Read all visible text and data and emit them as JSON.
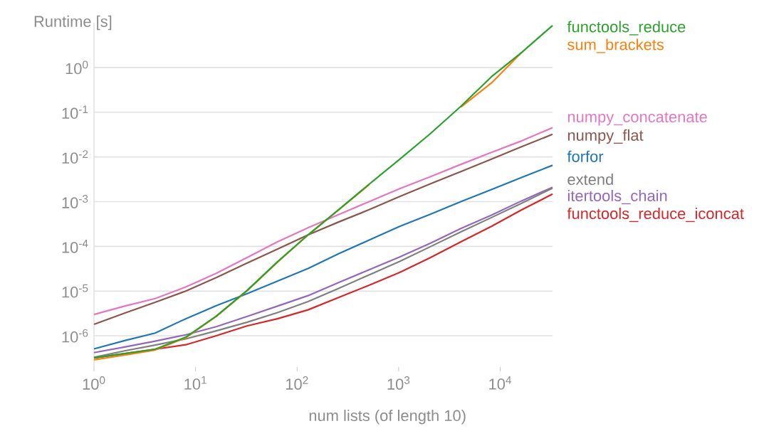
{
  "chart_data": {
    "type": "line",
    "xlabel": "num lists (of length 10)",
    "ylabel": "Runtime [s]",
    "log": "xy",
    "grid": "y",
    "marker": "none",
    "x": [
      1,
      2,
      4,
      8,
      16,
      32,
      64,
      128,
      256,
      512,
      1024,
      2048,
      4096,
      8192,
      16384,
      32768
    ],
    "xlim": [
      1,
      32768
    ],
    "ylim": [
      2e-07,
      10
    ],
    "xticks": [
      {
        "value": 1,
        "label": "10$^{0}$"
      },
      {
        "value": 10,
        "label": "10$^{1}$"
      },
      {
        "value": 100,
        "label": "10$^{2}$"
      },
      {
        "value": 1000,
        "label": "10$^{3}$"
      },
      {
        "value": 10000,
        "label": "10$^{4}$"
      }
    ],
    "yticks": [
      {
        "value": 1e-06,
        "label": "10$^{-6}$"
      },
      {
        "value": 1e-05,
        "label": "10$^{-5}$"
      },
      {
        "value": 0.0001,
        "label": "10$^{-4}$"
      },
      {
        "value": 0.001,
        "label": "10$^{-3}$"
      },
      {
        "value": 0.01,
        "label": "10$^{-2}$"
      },
      {
        "value": 0.1,
        "label": "10$^{-1}$"
      },
      {
        "value": 1,
        "label": "10$^{0}$"
      }
    ],
    "series": [
      {
        "name": "functools_reduce",
        "color": "#2ca02c",
        "values": [
          3.2e-07,
          4e-07,
          5e-07,
          9.3e-07,
          2.75e-06,
          1.02e-05,
          4.5e-05,
          0.00018,
          0.00066,
          0.00245,
          0.0089,
          0.033,
          0.135,
          0.62,
          2.2,
          8.7
        ]
      },
      {
        "name": "sum_brackets",
        "color": "#ff7f0e",
        "values": [
          2.9e-07,
          3.7e-07,
          4.8e-07,
          9e-07,
          2.7e-06,
          1e-05,
          4.4e-05,
          0.00018,
          0.00065,
          0.0024,
          null,
          null,
          0.13,
          0.45,
          2.2,
          null
        ]
      },
      {
        "name": "numpy_concatenate",
        "color": "#e377c2",
        "values": [
          3e-06,
          4.6e-06,
          6.8e-06,
          1.23e-05,
          2.5e-05,
          5.6e-05,
          0.000126,
          0.00026,
          0.00051,
          0.001,
          0.00195,
          0.0036,
          0.0068,
          0.0126,
          0.023,
          0.045
        ]
      },
      {
        "name": "numpy_flat",
        "color": "#8c564b",
        "values": [
          1.8e-06,
          3.2e-06,
          5.6e-06,
          1e-05,
          2e-05,
          4.2e-05,
          8.7e-05,
          0.00018,
          0.00035,
          0.00066,
          0.0013,
          0.0025,
          0.0047,
          0.0089,
          0.017,
          0.032
        ]
      },
      {
        "name": "forfor",
        "color": "#1f77b4",
        "values": [
          5.1e-07,
          7.8e-07,
          1.15e-06,
          2.4e-06,
          4.7e-06,
          8.7e-06,
          1.66e-05,
          3.2e-05,
          6.8e-05,
          0.000138,
          0.00028,
          0.00052,
          0.001,
          0.00186,
          0.0035,
          0.0065
        ]
      },
      {
        "name": "extend",
        "color": "#7f7f7f",
        "values": [
          3.3e-07,
          4.6e-07,
          6.2e-07,
          8.5e-07,
          1.29e-06,
          2e-06,
          3.3e-06,
          5.8e-06,
          1.15e-05,
          2.3e-05,
          4.6e-05,
          9.8e-05,
          0.00021,
          0.00044,
          0.00093,
          0.002
        ]
      },
      {
        "name": "itertools_chain",
        "color": "#9467bd",
        "values": [
          4.2e-07,
          5.6e-07,
          7.6e-07,
          1.05e-06,
          1.6e-06,
          2.7e-06,
          4.6e-06,
          7.9e-06,
          1.55e-05,
          3e-05,
          5.8e-05,
          0.000117,
          0.00025,
          0.0005,
          0.00105,
          0.0021
        ]
      },
      {
        "name": "functools_reduce_iconcat",
        "color": "#d62728",
        "values": [
          3.2e-07,
          4e-07,
          5e-07,
          6.3e-07,
          1e-06,
          1.66e-06,
          2.4e-06,
          3.8e-06,
          7.2e-06,
          1.35e-05,
          2.6e-05,
          5.6e-05,
          0.000126,
          0.00028,
          0.00066,
          0.00148
        ]
      }
    ]
  }
}
